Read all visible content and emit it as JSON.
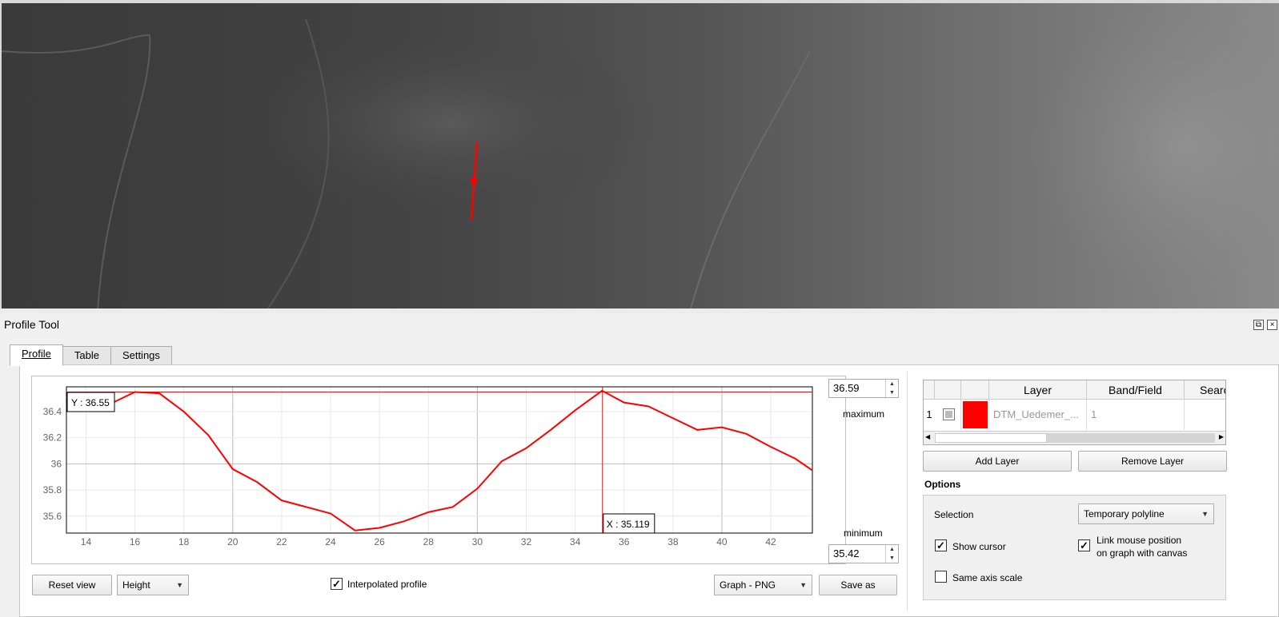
{
  "panel": {
    "title": "Profile Tool",
    "float_glyph": "⧉",
    "close_glyph": "×"
  },
  "tabs": [
    {
      "label": "Profile",
      "active": true
    },
    {
      "label": "Table",
      "active": false
    },
    {
      "label": "Settings",
      "active": false
    }
  ],
  "plot": {
    "max_value": "36.59",
    "max_label": "maximum",
    "min_value": "35.42",
    "min_label": "minimum",
    "cursor_y_label": "Y : 36.55",
    "cursor_x_label": "X : 35.119"
  },
  "chart_data": {
    "type": "line",
    "xlim": [
      13.2,
      43.7
    ],
    "ylim": [
      35.47,
      36.59
    ],
    "xticks": [
      14,
      16,
      18,
      20,
      22,
      24,
      26,
      28,
      30,
      32,
      34,
      36,
      38,
      40,
      42
    ],
    "yticks": [
      35.6,
      35.8,
      36,
      36.2,
      36.4
    ],
    "cursor": {
      "x": 35.119,
      "y": 36.55
    },
    "series": [
      {
        "color": "#ff0000",
        "x": [
          13,
          14,
          15,
          16,
          17,
          18,
          19,
          20,
          21,
          22,
          23,
          24,
          25,
          26,
          27,
          28,
          29,
          30,
          31,
          32,
          33,
          34,
          35.1,
          36,
          37,
          38,
          39,
          40,
          41,
          42,
          43,
          43.7
        ],
        "y": [
          36.51,
          36.51,
          36.46,
          36.55,
          36.54,
          36.4,
          36.22,
          35.96,
          35.86,
          35.72,
          35.67,
          35.62,
          35.49,
          35.51,
          35.56,
          35.63,
          35.67,
          35.81,
          36.02,
          36.12,
          36.26,
          36.41,
          36.56,
          36.47,
          36.44,
          36.35,
          36.26,
          36.28,
          36.23,
          36.13,
          36.04,
          35.95
        ]
      }
    ]
  },
  "bottom_bar": {
    "reset_view": "Reset view",
    "mode_combo": "Height",
    "interpolated_label": "Interpolated profile",
    "interpolated_checked": "✓",
    "export_combo": "Graph - PNG",
    "save_as": "Save as"
  },
  "layer_table": {
    "headers": [
      "",
      "",
      "",
      "Layer",
      "Band/Field",
      "Searc"
    ],
    "rows": [
      {
        "index": "1",
        "checked": "",
        "color": "#ff0000",
        "layer": "DTM_Uedemer_...",
        "band": "1",
        "search": ""
      }
    ],
    "scroll_left": "◀",
    "scroll_right": "▶"
  },
  "layer_buttons": {
    "add": "Add Layer",
    "remove": "Remove Layer"
  },
  "options": {
    "title": "Options",
    "selection_label": "Selection",
    "selection_value": "Temporary polyline",
    "show_cursor_label": "Show cursor",
    "show_cursor_checked": "✓",
    "link_mouse_label_1": "Link mouse position",
    "link_mouse_label_2": "on graph with canvas",
    "link_mouse_checked": "✓",
    "same_axis_label": "Same axis scale",
    "same_axis_checked": ""
  },
  "colors": {
    "profile_line": "#ff0000",
    "map_background": "#4a4a4a"
  }
}
